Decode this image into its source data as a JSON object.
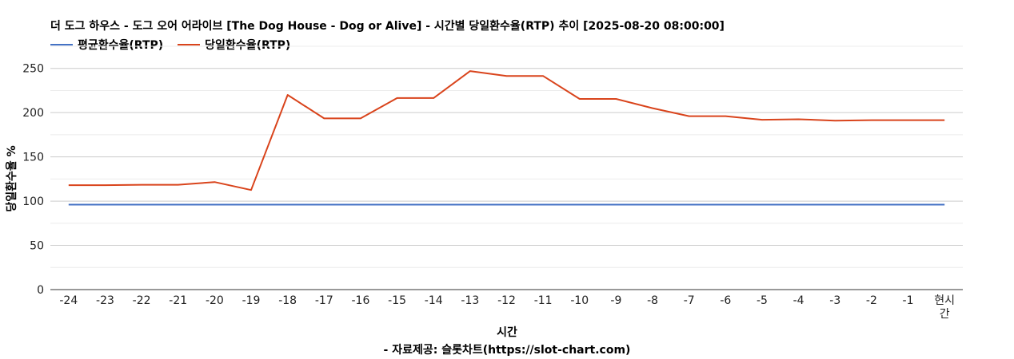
{
  "chart_data": {
    "type": "line",
    "title": "더 도그 하우스 - 도그 오어 어라이브 [The Dog House - Dog or Alive] - 시간별 당일환수율(RTP) 추이 [2025-08-20 08:00:00]",
    "xlabel": "시간",
    "ylabel": "당일환수율 %",
    "source": "- 자료제공: 슬롯차트(https://slot-chart.com)",
    "categories": [
      "-24",
      "-23",
      "-22",
      "-21",
      "-20",
      "-19",
      "-18",
      "-17",
      "-16",
      "-15",
      "-14",
      "-13",
      "-12",
      "-11",
      "-10",
      "-9",
      "-8",
      "-7",
      "-6",
      "-5",
      "-4",
      "-3",
      "-2",
      "-1",
      "현시간"
    ],
    "ylim": [
      0,
      275
    ],
    "yticks": [
      0,
      50,
      100,
      150,
      200,
      250
    ],
    "grid": true,
    "legend_position": "top-left",
    "series": [
      {
        "name": "평균환수율(RTP)",
        "color": "#4472c4",
        "values": [
          96,
          96,
          96,
          96,
          96,
          96,
          96,
          96,
          96,
          96,
          96,
          96,
          96,
          96,
          96,
          96,
          96,
          96,
          96,
          96,
          96,
          96,
          96,
          96,
          96
        ]
      },
      {
        "name": "당일환수율(RTP)",
        "color": "#d9441c",
        "values": [
          118,
          118,
          118.5,
          118.5,
          121.5,
          112.5,
          220,
          193.5,
          193.5,
          216.5,
          216.5,
          247,
          241.5,
          241.5,
          215.5,
          215.5,
          205,
          196,
          196,
          192,
          192.5,
          191,
          191.5,
          191.5,
          191.5
        ]
      }
    ]
  }
}
